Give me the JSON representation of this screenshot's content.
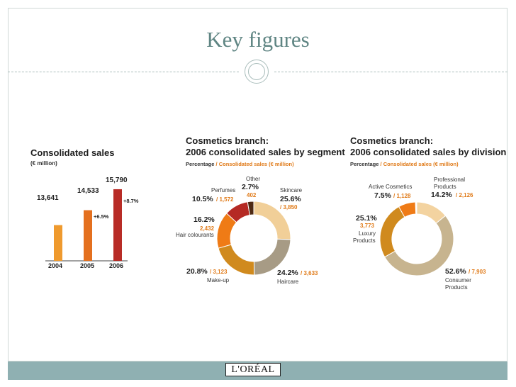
{
  "slide": {
    "title": "Key figures",
    "footer_logo": "L'ORÉAL",
    "colors": {
      "title": "#5f8583",
      "footer": "#8fb0b2",
      "divider": "#a9bdbb"
    }
  },
  "chart_data": [
    {
      "type": "bar",
      "title": "Consolidated sales",
      "subtitle": "(€ million)",
      "categories": [
        "2004",
        "2005",
        "2006"
      ],
      "values": [
        13641,
        14533,
        15790
      ],
      "value_labels": [
        "13,641",
        "14,533",
        "15,790"
      ],
      "growth_labels": [
        "",
        "+6.5%",
        "+8.7%"
      ],
      "colors": [
        "#ef9a2e",
        "#e4701f",
        "#b82c26"
      ],
      "ylim": [
        11500,
        16000
      ]
    },
    {
      "type": "pie",
      "title_line1": "Cosmetics branch:",
      "title_line2": "2006 consolidated sales by segment",
      "subtitle_a": "Percentage",
      "subtitle_sep": "/",
      "subtitle_b": "Consolidated sales (€ million)",
      "slices": [
        {
          "name": "Skincare",
          "percent": 25.6,
          "pct_label": "25.6%",
          "value": "3,850",
          "color": "#f1cf98"
        },
        {
          "name": "Haircare",
          "percent": 24.2,
          "pct_label": "24.2%",
          "value": "3,633",
          "color": "#a79b85"
        },
        {
          "name": "Make-up",
          "percent": 20.8,
          "pct_label": "20.8%",
          "value": "3,123",
          "color": "#d08a1e"
        },
        {
          "name": "Hair colourants",
          "percent": 16.2,
          "pct_label": "16.2%",
          "value": "2,432",
          "color": "#ef7b16"
        },
        {
          "name": "Perfumes",
          "percent": 10.5,
          "pct_label": "10.5%",
          "value": "1,572",
          "color": "#b52a24"
        },
        {
          "name": "Other",
          "percent": 2.7,
          "pct_label": "2.7%",
          "value": "402",
          "color": "#4f2a14"
        }
      ]
    },
    {
      "type": "pie",
      "title_line1": "Cosmetics branch:",
      "title_line2": "2006 consolidated sales by division",
      "subtitle_a": "Percentage",
      "subtitle_sep": "/",
      "subtitle_b": "Consolidated sales (€ million)",
      "slices": [
        {
          "name": "Professional Products",
          "name_line1": "Professional",
          "name_line2": "Products",
          "percent": 14.2,
          "pct_label": "14.2%",
          "value": "2,126",
          "color": "#f3d3a0"
        },
        {
          "name": "Consumer Products",
          "name_line1": "Consumer",
          "name_line2": "Products",
          "percent": 52.6,
          "pct_label": "52.6%",
          "value": "7,903",
          "color": "#c7b48f"
        },
        {
          "name": "Luxury Products",
          "name_line1": "Luxury",
          "name_line2": "Products",
          "percent": 25.1,
          "pct_label": "25.1%",
          "value": "3,773",
          "color": "#d08a1e"
        },
        {
          "name": "Active Cosmetics",
          "percent": 7.5,
          "pct_label": "7.5%",
          "value": "1,128",
          "color": "#ef7b16"
        }
      ]
    }
  ]
}
